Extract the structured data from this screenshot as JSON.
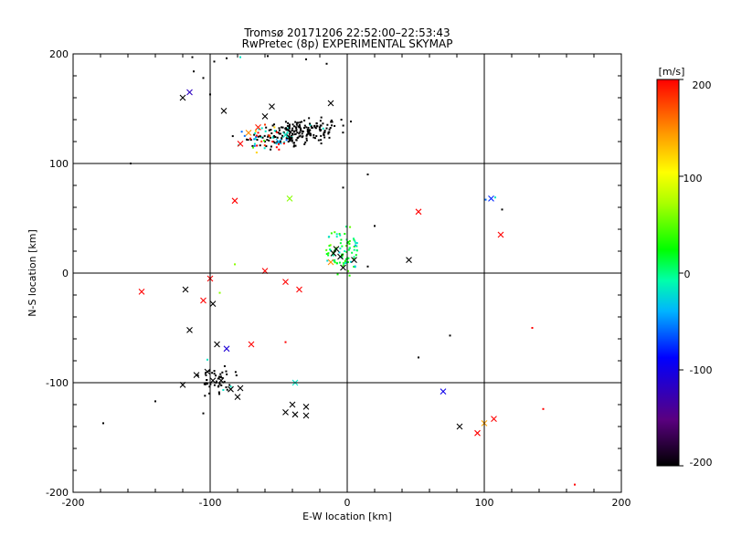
{
  "chart_data": {
    "type": "scatter",
    "title": "Tromsø 20171206 22:52:00–22:53:43",
    "subtitle": "RwPretec (8p) EXPERIMENTAL SKYMAP",
    "xlabel": "E-W location [km]",
    "ylabel": "N-S location [km]",
    "xlim": [
      -200,
      200
    ],
    "ylim": [
      -200,
      200
    ],
    "xticks": [
      "-200",
      "-100",
      "0",
      "100",
      "200"
    ],
    "yticks": [
      "-200",
      "-100",
      "0",
      "100",
      "200"
    ],
    "grid": true,
    "colorbar": {
      "label": "[m/s]",
      "min": -200,
      "max": 200,
      "ticks": [
        "200",
        "100",
        "0",
        "-100",
        "-200"
      ]
    },
    "clusters": [
      {
        "name": "north-dense",
        "cx": -35,
        "cy": 128,
        "sx": 22,
        "sy": 8,
        "n": 220,
        "vmode": "black"
      },
      {
        "name": "north-colored",
        "cx": -60,
        "cy": 122,
        "sx": 12,
        "sy": 8,
        "n": 40,
        "vmode": "mixed"
      },
      {
        "name": "center-green",
        "cx": -4,
        "cy": 18,
        "sx": 10,
        "sy": 14,
        "n": 90,
        "vmode": "green"
      },
      {
        "name": "southwest",
        "cx": -95,
        "cy": -98,
        "sx": 10,
        "sy": 10,
        "n": 45,
        "vmode": "black"
      }
    ],
    "crosses": [
      {
        "x": -120,
        "y": 160,
        "v": -200
      },
      {
        "x": -115,
        "y": 165,
        "v": -120
      },
      {
        "x": -90,
        "y": 148,
        "v": -200
      },
      {
        "x": -55,
        "y": 152,
        "v": -200
      },
      {
        "x": -60,
        "y": 143,
        "v": -200
      },
      {
        "x": -12,
        "y": 155,
        "v": -200
      },
      {
        "x": -65,
        "y": 133,
        "v": 190
      },
      {
        "x": -72,
        "y": 128,
        "v": 150
      },
      {
        "x": -78,
        "y": 118,
        "v": 200
      },
      {
        "x": -82,
        "y": 66,
        "v": 200
      },
      {
        "x": -42,
        "y": 68,
        "v": 60
      },
      {
        "x": 52,
        "y": 56,
        "v": 200
      },
      {
        "x": 112,
        "y": 35,
        "v": 200
      },
      {
        "x": 105,
        "y": 68,
        "v": -80
      },
      {
        "x": 45,
        "y": 12,
        "v": -200
      },
      {
        "x": -150,
        "y": -17,
        "v": 200
      },
      {
        "x": -100,
        "y": -5,
        "v": 200
      },
      {
        "x": -105,
        "y": -25,
        "v": 200
      },
      {
        "x": -60,
        "y": 2,
        "v": 200
      },
      {
        "x": -45,
        "y": -8,
        "v": 200
      },
      {
        "x": -35,
        "y": -15,
        "v": 200
      },
      {
        "x": -118,
        "y": -15,
        "v": -200
      },
      {
        "x": -98,
        "y": -28,
        "v": -200
      },
      {
        "x": -115,
        "y": -52,
        "v": -200
      },
      {
        "x": -70,
        "y": -65,
        "v": 200
      },
      {
        "x": -95,
        "y": -65,
        "v": -200
      },
      {
        "x": -88,
        "y": -69,
        "v": -110
      },
      {
        "x": -120,
        "y": -102,
        "v": -200
      },
      {
        "x": -110,
        "y": -93,
        "v": -200
      },
      {
        "x": -102,
        "y": -90,
        "v": -200
      },
      {
        "x": -98,
        "y": -98,
        "v": -200
      },
      {
        "x": -92,
        "y": -98,
        "v": -200
      },
      {
        "x": -85,
        "y": -106,
        "v": -200
      },
      {
        "x": -78,
        "y": -105,
        "v": -200
      },
      {
        "x": -80,
        "y": -113,
        "v": -200
      },
      {
        "x": -45,
        "y": -127,
        "v": -200
      },
      {
        "x": -38,
        "y": -129,
        "v": -200
      },
      {
        "x": -40,
        "y": -120,
        "v": -200
      },
      {
        "x": -30,
        "y": -122,
        "v": -200
      },
      {
        "x": -30,
        "y": -130,
        "v": -200
      },
      {
        "x": -38,
        "y": -100,
        "v": -20
      },
      {
        "x": -10,
        "y": 18,
        "v": -200
      },
      {
        "x": -5,
        "y": 15,
        "v": -200
      },
      {
        "x": 5,
        "y": 12,
        "v": -200
      },
      {
        "x": -3,
        "y": 5,
        "v": -200
      },
      {
        "x": -8,
        "y": 22,
        "v": -200
      },
      {
        "x": -12,
        "y": 10,
        "v": 150
      },
      {
        "x": 70,
        "y": -108,
        "v": -100
      },
      {
        "x": 82,
        "y": -140,
        "v": -200
      },
      {
        "x": 95,
        "y": -146,
        "v": 200
      },
      {
        "x": 100,
        "y": -137,
        "v": 140
      },
      {
        "x": 107,
        "y": -133,
        "v": 200
      },
      {
        "x": -50,
        "y": 120,
        "v": -40
      },
      {
        "x": -45,
        "y": 126,
        "v": -20
      }
    ],
    "dots": [
      {
        "x": -178,
        "y": -137,
        "v": -200
      },
      {
        "x": -158,
        "y": 100,
        "v": -200
      },
      {
        "x": -105,
        "y": -128,
        "v": -200
      },
      {
        "x": -140,
        "y": -117,
        "v": -200
      },
      {
        "x": 75,
        "y": -57,
        "v": -200
      },
      {
        "x": 52,
        "y": -77,
        "v": -200
      },
      {
        "x": 135,
        "y": -50,
        "v": 200
      },
      {
        "x": 143,
        "y": -124,
        "v": 200
      },
      {
        "x": 166,
        "y": -193,
        "v": 200
      },
      {
        "x": 113,
        "y": 58,
        "v": -200
      },
      {
        "x": 108,
        "y": 69,
        "v": -20
      },
      {
        "x": 101,
        "y": 67,
        "v": -60
      },
      {
        "x": 20,
        "y": 43,
        "v": -200
      },
      {
        "x": 15,
        "y": 6,
        "v": -200
      },
      {
        "x": -45,
        "y": -63,
        "v": 200
      },
      {
        "x": -82,
        "y": 8,
        "v": 60
      },
      {
        "x": -93,
        "y": -18,
        "v": 60
      },
      {
        "x": -102,
        "y": -79,
        "v": -20
      },
      {
        "x": -113,
        "y": 197,
        "v": -200
      },
      {
        "x": -97,
        "y": 193,
        "v": -200
      },
      {
        "x": -88,
        "y": 196,
        "v": -200
      },
      {
        "x": -78,
        "y": 197,
        "v": -20
      },
      {
        "x": -58,
        "y": 198,
        "v": -200
      },
      {
        "x": -30,
        "y": 195,
        "v": -200
      },
      {
        "x": -15,
        "y": 191,
        "v": -200
      },
      {
        "x": -105,
        "y": 178,
        "v": -200
      },
      {
        "x": -112,
        "y": 184,
        "v": -200
      },
      {
        "x": -100,
        "y": 163,
        "v": -200
      },
      {
        "x": 15,
        "y": 90,
        "v": -200
      },
      {
        "x": -3,
        "y": 78,
        "v": -200
      }
    ]
  }
}
